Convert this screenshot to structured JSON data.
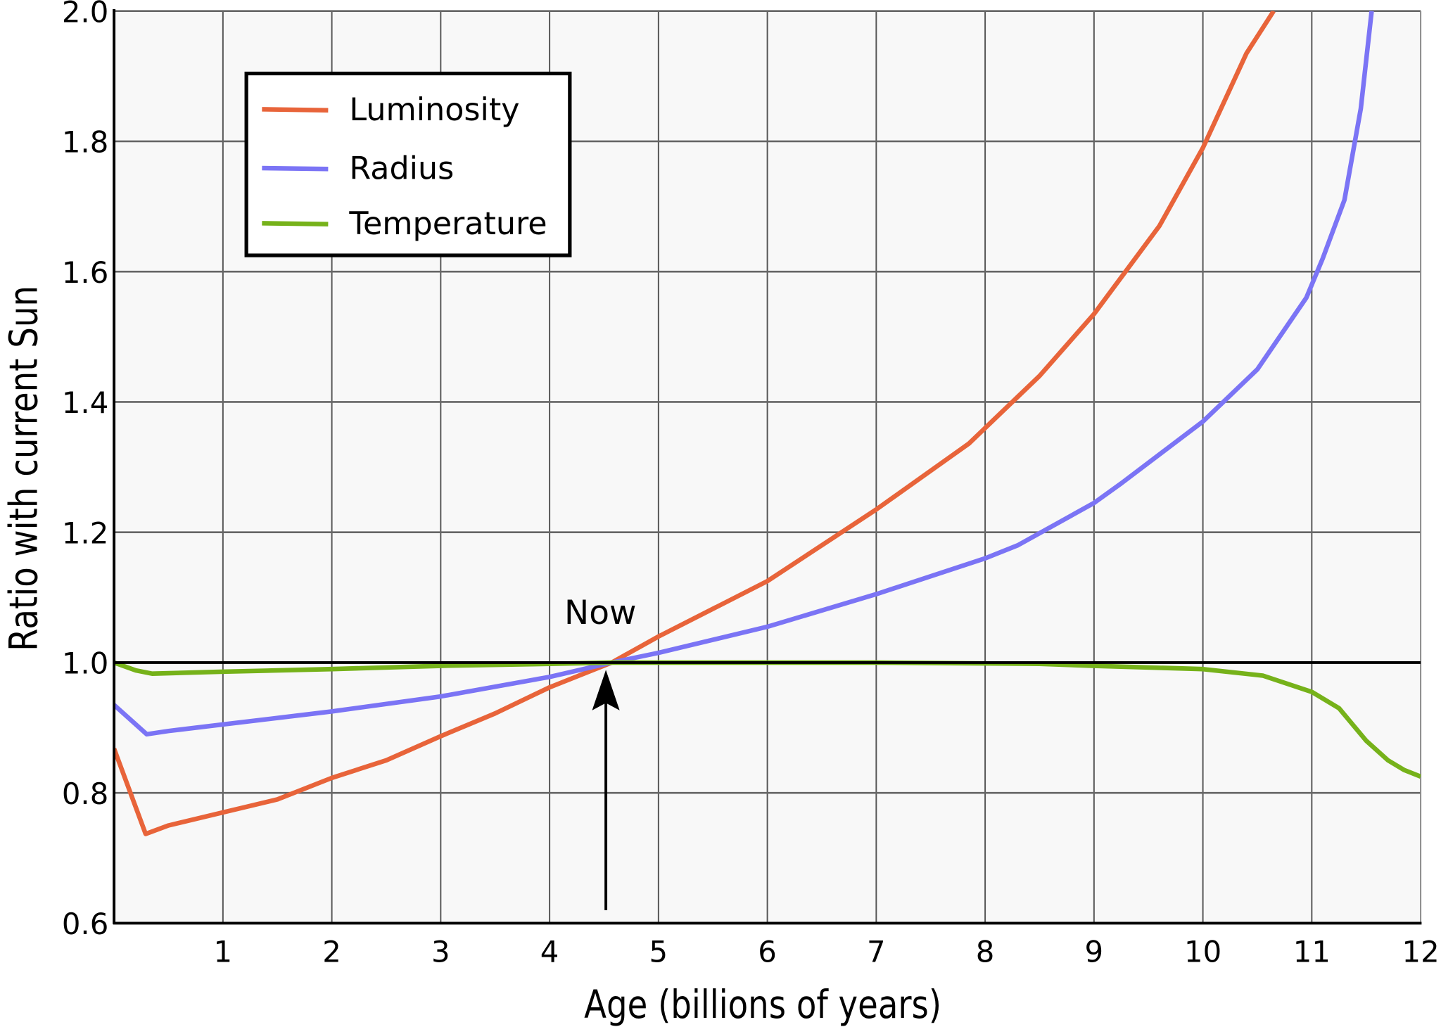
{
  "chart_data": {
    "type": "line",
    "title": "",
    "xlabel": "Age (billions of years)",
    "ylabel": "Ratio with current Sun",
    "xlim": [
      0,
      12
    ],
    "ylim": [
      0.6,
      2.0
    ],
    "xticks": [
      1,
      2,
      3,
      4,
      5,
      6,
      7,
      8,
      9,
      10,
      11,
      12
    ],
    "xtick_labels": [
      "1",
      "2",
      "3",
      "4",
      "5",
      "6",
      "7",
      "8",
      "9",
      "10",
      "11",
      "12"
    ],
    "yticks": [
      0.6,
      0.8,
      1.0,
      1.2,
      1.4,
      1.6,
      1.8,
      2.0
    ],
    "ytick_labels": [
      "0.6",
      "0.8",
      "1.0",
      "1.2",
      "1.4",
      "1.6",
      "1.8",
      "2.0"
    ],
    "grid": true,
    "legend_placement": "top-left",
    "reference_line": {
      "y": 1.0,
      "color": "#000000"
    },
    "annotation": {
      "text": "Now",
      "x": 4.5,
      "y": 1.0,
      "arrow_from_y": 0.62
    },
    "series": [
      {
        "name": "Luminosity",
        "color": "#e8643a",
        "x": [
          0,
          0.29,
          0.5,
          1,
          1.5,
          2,
          2.5,
          3,
          3.5,
          4,
          4.57,
          5,
          6,
          7,
          7.85,
          8.5,
          9,
          9.6,
          10,
          10.4,
          10.65
        ],
        "y": [
          0.868,
          0.737,
          0.75,
          0.77,
          0.79,
          0.823,
          0.85,
          0.887,
          0.922,
          0.962,
          1.0,
          1.04,
          1.125,
          1.235,
          1.336,
          1.44,
          1.535,
          1.67,
          1.79,
          1.935,
          2.0
        ]
      },
      {
        "name": "Radius",
        "color": "#7b74f5",
        "x": [
          0,
          0.3,
          0.5,
          1,
          2,
          3,
          4,
          4.57,
          5,
          6,
          7,
          8,
          8.3,
          9,
          9.25,
          10,
          10.5,
          10.95,
          11.1,
          11.3,
          11.45,
          11.55
        ],
        "y": [
          0.935,
          0.89,
          0.895,
          0.905,
          0.925,
          0.948,
          0.978,
          1.0,
          1.015,
          1.055,
          1.105,
          1.16,
          1.18,
          1.245,
          1.275,
          1.37,
          1.45,
          1.56,
          1.62,
          1.71,
          1.85,
          2.0
        ]
      },
      {
        "name": "Temperature",
        "color": "#76b21a",
        "x": [
          0,
          0.2,
          0.35,
          1,
          2,
          3,
          4,
          4.57,
          6,
          7,
          8.5,
          9,
          10,
          10.55,
          11,
          11.25,
          11.5,
          11.7,
          11.85,
          12
        ],
        "y": [
          1.0,
          0.988,
          0.983,
          0.986,
          0.99,
          0.995,
          0.998,
          1.0,
          1.0,
          1.0,
          0.998,
          0.995,
          0.99,
          0.98,
          0.955,
          0.93,
          0.88,
          0.85,
          0.835,
          0.825
        ]
      }
    ]
  }
}
